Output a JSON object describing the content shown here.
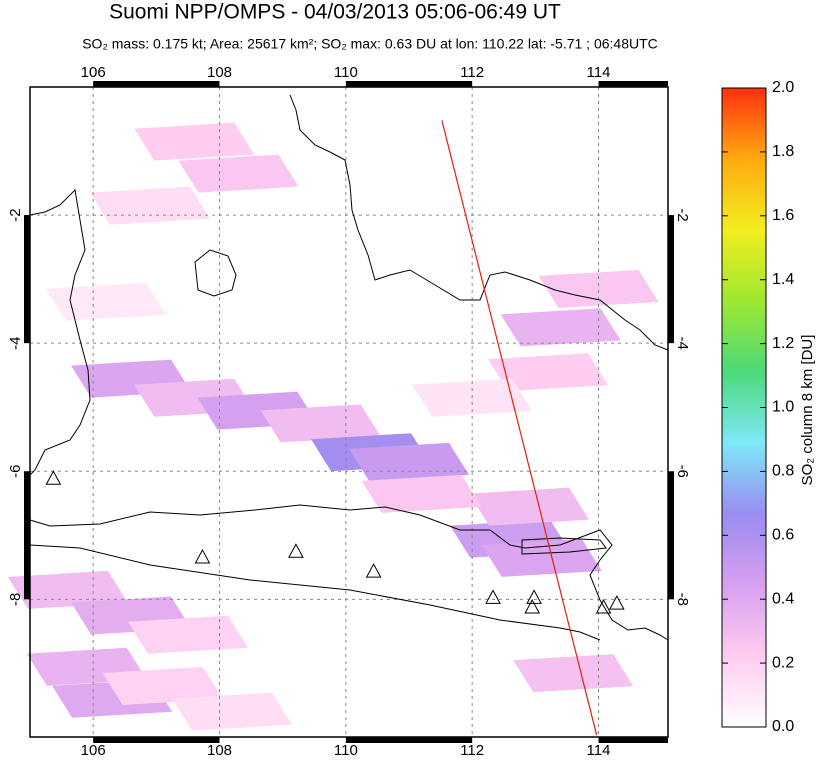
{
  "chart_data": {
    "type": "map",
    "title": "Suomi NPP/OMPS - 04/03/2013 05:06-06:49 UT",
    "subtitle": "SO₂ mass: 0.175 kt; Area: 25617 km²; SO₂ max: 0.63 DU at lon: 110.22 lat: -5.71 ; 06:48UTC",
    "xlim": [
      105,
      115.1
    ],
    "ylim": [
      -10.15,
      0
    ],
    "xticks": [
      106,
      108,
      110,
      112,
      114
    ],
    "yticks": [
      -2,
      -4,
      -6,
      -8
    ],
    "grid": true,
    "colorbar": {
      "label": "SO₂ column 8 km [DU]",
      "lim": [
        0,
        2
      ],
      "ticks": [
        {
          "value": 0,
          "label": "0.0"
        },
        0.2,
        0.4,
        0.6,
        0.8,
        {
          "value": 1,
          "label": "1.0"
        },
        1.2,
        1.4,
        1.6,
        1.8,
        {
          "value": 2,
          "label": "2.0"
        }
      ],
      "colors": [
        "#ffffff",
        "#ffccf0",
        "#d7a0f0",
        "#9a8cf0",
        "#7ee8f8",
        "#4cd97a",
        "#9ee830",
        "#f2ee20",
        "#ffaa10",
        "#ff3010"
      ]
    },
    "pixels": {
      "lon": [
        107.6,
        108.3,
        106.9,
        106.6,
        107.6,
        108.6,
        109.6,
        110.4,
        111.0,
        112.6,
        113.1,
        113.4,
        114.0,
        113.2,
        112.0,
        105.6,
        106.6,
        107.5,
        105.9,
        106.3,
        107.1,
        108.2,
        112.9,
        111.2,
        106.2,
        113.6
      ],
      "lat": [
        -0.9,
        -1.4,
        -1.9,
        -4.6,
        -4.9,
        -5.1,
        -5.3,
        -5.75,
        -5.9,
        -7.1,
        -7.4,
        -3.8,
        -3.2,
        -4.5,
        -4.9,
        -7.9,
        -8.3,
        -8.6,
        -9.1,
        -9.6,
        -9.4,
        -9.8,
        -6.6,
        -6.4,
        -3.4,
        -9.2
      ],
      "values": [
        0.22,
        0.25,
        0.15,
        0.42,
        0.3,
        0.45,
        0.3,
        0.63,
        0.5,
        0.48,
        0.42,
        0.35,
        0.25,
        0.22,
        0.12,
        0.3,
        0.38,
        0.2,
        0.35,
        0.4,
        0.2,
        0.15,
        0.3,
        0.25,
        0.1,
        0.28
      ]
    },
    "volcanoes": {
      "lon": [
        105.37,
        107.73,
        109.21,
        110.44,
        112.33,
        112.98,
        112.95,
        114.08,
        114.29
      ],
      "lat": [
        -6.11,
        -7.34,
        -7.25,
        -7.56,
        -7.97,
        -7.97,
        -8.12,
        -8.12,
        -8.06
      ]
    },
    "track": {
      "color": "#e02010",
      "lon": [
        111.52,
        113.97
      ],
      "lat": [
        -0.52,
        -10.12
      ]
    }
  }
}
